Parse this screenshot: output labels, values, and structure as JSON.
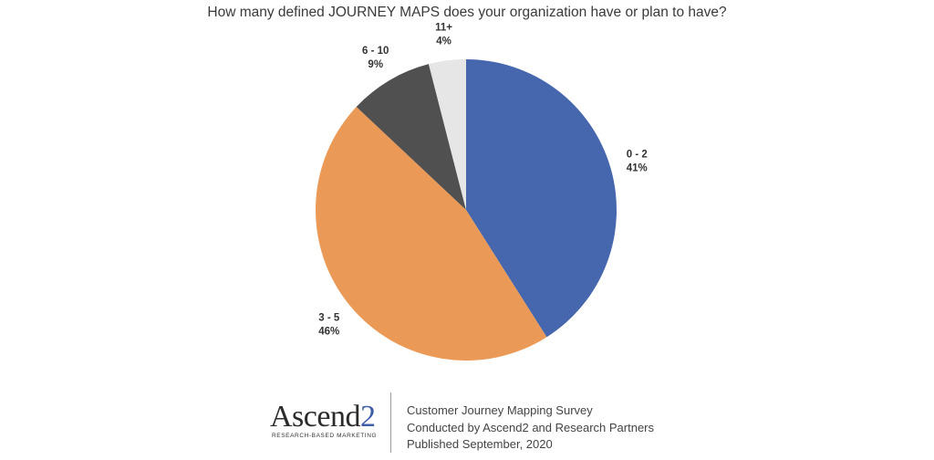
{
  "chart_data": {
    "type": "pie",
    "title": "How many defined JOURNEY MAPS does your organization have or plan to have?",
    "slices": [
      {
        "label": "0 - 2",
        "value": 41,
        "display": "41%",
        "color": "#4667ad"
      },
      {
        "label": "3 - 5",
        "value": 46,
        "display": "46%",
        "color": "#ea9a56"
      },
      {
        "label": "6 - 10",
        "value": 9,
        "display": "9%",
        "color": "#505050"
      },
      {
        "label": "11+",
        "value": 4,
        "display": "4%",
        "color": "#e6e6e6"
      }
    ],
    "start": "12 o'clock",
    "direction": "clockwise"
  },
  "footer": {
    "logo_text_main": "Ascend",
    "logo_text_accent": "2",
    "logo_tagline": "RESEARCH-BASED MARKETING",
    "lines": [
      "Customer Journey Mapping Survey",
      "Conducted by Ascend2 and Research Partners",
      "Published September, 2020"
    ]
  }
}
